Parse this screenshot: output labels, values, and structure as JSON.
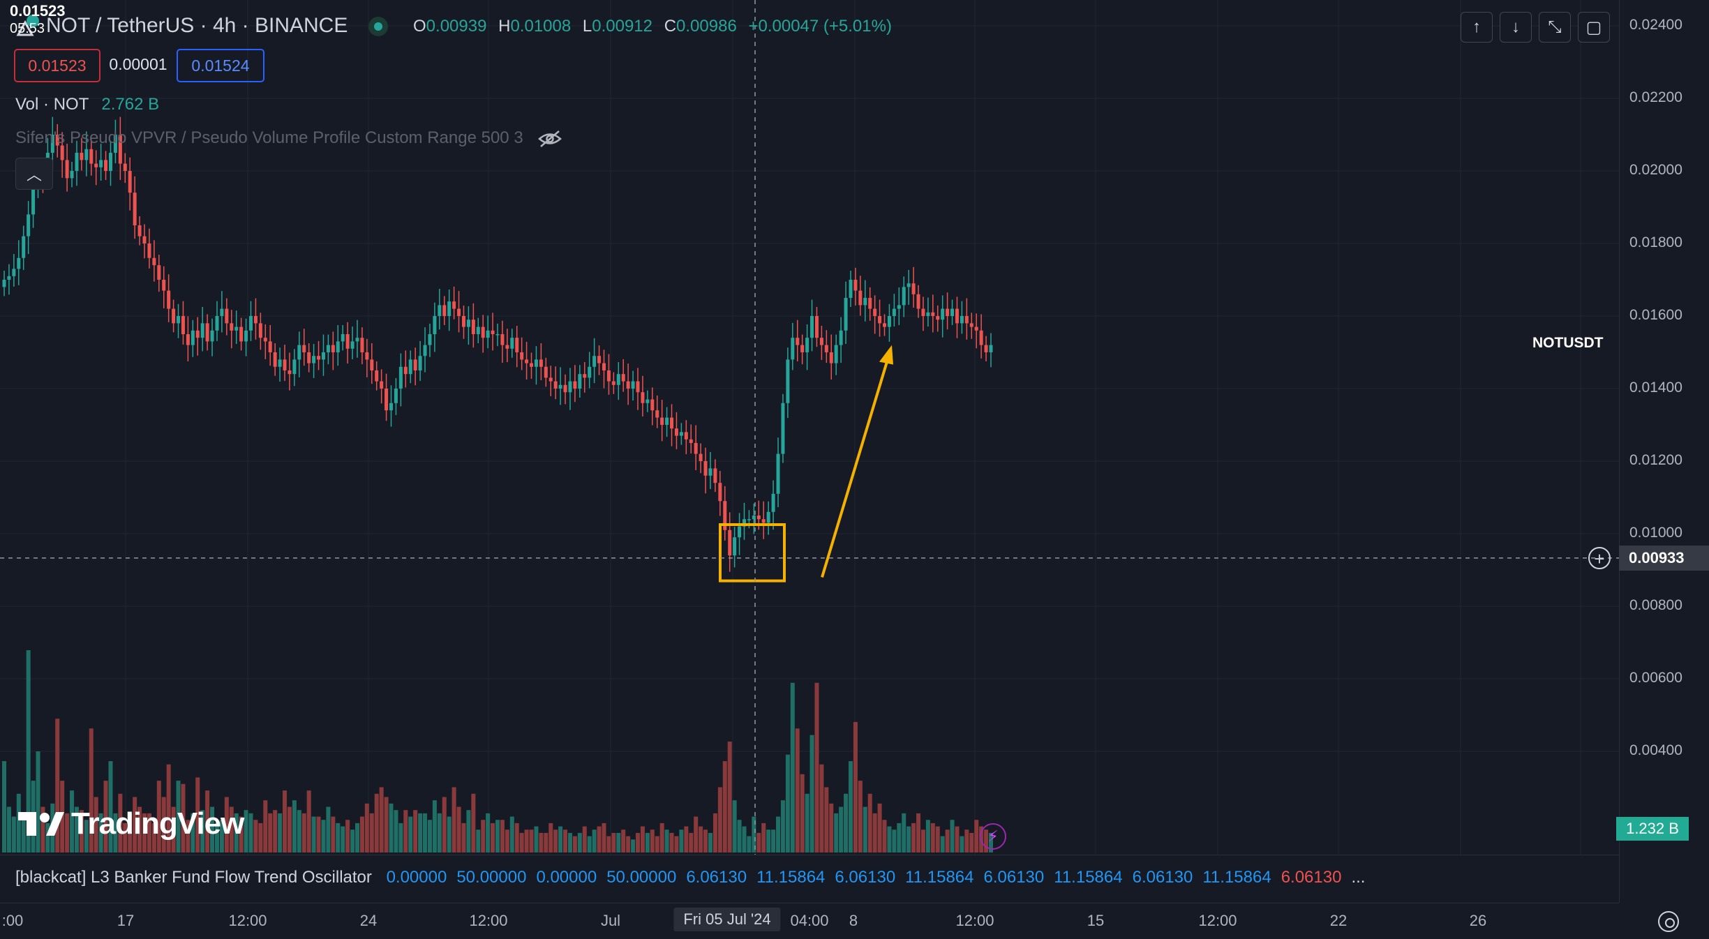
{
  "header": {
    "symbol_title": "NOT / TetherUS · 4h · BINANCE",
    "ohlc": [
      {
        "k": "O",
        "v": "0.00939"
      },
      {
        "k": "H",
        "v": "0.01008"
      },
      {
        "k": "L",
        "v": "0.00912"
      },
      {
        "k": "C",
        "v": "0.00986"
      }
    ],
    "change": "+0.00047 (+5.01%)",
    "bid": "0.01523",
    "spread": "0.00001",
    "ask": "0.01524",
    "volume_label": "Vol · NOT",
    "volume_value": "2.762 B",
    "vpvr_label": "Sifen's Pseudo VPVR / Pseudo Volume Profile Custom Range 500 3"
  },
  "toolbar": {
    "icons": [
      "arrow-up-icon",
      "arrow-down-icon",
      "collapse-icon",
      "fullscreen-icon"
    ],
    "glyphs": [
      "↑",
      "↓",
      "⤡",
      "▢"
    ]
  },
  "price_axis": {
    "labels": [
      "0.02400",
      "0.02200",
      "0.02000",
      "0.01800",
      "0.01600",
      "0.01400",
      "0.01200",
      "0.01000",
      "0.00800",
      "0.00600",
      "0.00400"
    ],
    "current_symbol": "NOTUSDT",
    "current_price": "0.01523",
    "countdown": "05:53",
    "crosshair_price": "0.00933",
    "volume_tag": "1.232 B"
  },
  "time_axis": {
    "labels": [
      ":00",
      "17",
      "12:00",
      "24",
      "12:00",
      "Jul",
      "Fri 05 Jul '24",
      "04:00",
      "8",
      "12:00",
      "15",
      "12:00",
      "22",
      "26"
    ]
  },
  "oscillator": {
    "name": "[blackcat] L3 Banker Fund Flow Trend Oscillator",
    "values": [
      {
        "v": "0.00000",
        "c": "#2196f3"
      },
      {
        "v": "50.00000",
        "c": "#2196f3"
      },
      {
        "v": "0.00000",
        "c": "#2196f3"
      },
      {
        "v": "50.00000",
        "c": "#2196f3"
      },
      {
        "v": "6.06130",
        "c": "#2196f3"
      },
      {
        "v": "11.15864",
        "c": "#2196f3"
      },
      {
        "v": "6.06130",
        "c": "#2196f3"
      },
      {
        "v": "11.15864",
        "c": "#2196f3"
      },
      {
        "v": "6.06130",
        "c": "#2196f3"
      },
      {
        "v": "11.15864",
        "c": "#2196f3"
      },
      {
        "v": "6.06130",
        "c": "#2196f3"
      },
      {
        "v": "11.15864",
        "c": "#2196f3"
      },
      {
        "v": "6.06130",
        "c": "#ef5350"
      },
      {
        "v": "...",
        "c": "#d1d4dc"
      }
    ]
  },
  "branding": {
    "logo_text": "TradingView"
  },
  "colors": {
    "up": "#26a69a",
    "down": "#ef5350",
    "highlight": "#f5b100",
    "grid": "#232632"
  },
  "chart_data": {
    "type": "candlestick",
    "timeframe": "4h",
    "ylim": [
      0.008,
      0.024
    ],
    "closes": [
      0.017,
      0.0171,
      0.0173,
      0.0176,
      0.0182,
      0.0188,
      0.0195,
      0.02,
      0.0198,
      0.0205,
      0.021,
      0.0207,
      0.0203,
      0.0198,
      0.02,
      0.0205,
      0.0203,
      0.0206,
      0.0202,
      0.0201,
      0.0203,
      0.02,
      0.0205,
      0.021,
      0.0202,
      0.02,
      0.0194,
      0.0185,
      0.0182,
      0.018,
      0.0176,
      0.0174,
      0.017,
      0.0167,
      0.0162,
      0.0158,
      0.016,
      0.0155,
      0.0152,
      0.0156,
      0.0154,
      0.0158,
      0.0153,
      0.0156,
      0.016,
      0.0162,
      0.0158,
      0.0156,
      0.0157,
      0.0153,
      0.0156,
      0.016,
      0.0158,
      0.0154,
      0.0153,
      0.015,
      0.0146,
      0.0148,
      0.0145,
      0.0144,
      0.0148,
      0.0152,
      0.015,
      0.0147,
      0.0149,
      0.0148,
      0.015,
      0.0152,
      0.015,
      0.0153,
      0.0155,
      0.0151,
      0.0153,
      0.0154,
      0.015,
      0.0148,
      0.0145,
      0.0142,
      0.014,
      0.0134,
      0.0136,
      0.014,
      0.0146,
      0.0144,
      0.0148,
      0.0145,
      0.0149,
      0.0152,
      0.0155,
      0.016,
      0.0163,
      0.016,
      0.0164,
      0.0162,
      0.016,
      0.0157,
      0.0159,
      0.0155,
      0.0157,
      0.0154,
      0.0156,
      0.0155,
      0.0155,
      0.0152,
      0.0151,
      0.0154,
      0.015,
      0.0148,
      0.0147,
      0.0146,
      0.0148,
      0.0146,
      0.0143,
      0.0142,
      0.014,
      0.0141,
      0.0139,
      0.0142,
      0.014,
      0.0144,
      0.0143,
      0.0146,
      0.0149,
      0.0147,
      0.0145,
      0.0142,
      0.0141,
      0.0144,
      0.0142,
      0.014,
      0.0142,
      0.0139,
      0.0136,
      0.0137,
      0.0134,
      0.0132,
      0.013,
      0.0132,
      0.0129,
      0.0127,
      0.0128,
      0.0126,
      0.0125,
      0.0122,
      0.012,
      0.0116,
      0.0118,
      0.0114,
      0.0109,
      0.0101,
      0.0094,
      0.0099,
      0.0102,
      0.0104,
      0.0104,
      0.0105,
      0.0104,
      0.0103,
      0.0106,
      0.0111,
      0.0122,
      0.0136,
      0.0148,
      0.0154,
      0.0152,
      0.015,
      0.0154,
      0.016,
      0.0154,
      0.0152,
      0.015,
      0.0147,
      0.0152,
      0.0156,
      0.0165,
      0.017,
      0.0167,
      0.0163,
      0.0165,
      0.0162,
      0.016,
      0.0158,
      0.0157,
      0.016,
      0.0162,
      0.0163,
      0.0168,
      0.0169,
      0.0166,
      0.0162,
      0.016,
      0.0161,
      0.016,
      0.0159,
      0.0162,
      0.016,
      0.0162,
      0.0158,
      0.016,
      0.0158,
      0.0157,
      0.0156,
      0.0152,
      0.015,
      0.0152
    ],
    "volumes": [
      0.28,
      0.14,
      0.11,
      0.18,
      0.1,
      0.62,
      0.22,
      0.31,
      0.14,
      0.09,
      0.15,
      0.41,
      0.22,
      0.12,
      0.19,
      0.14,
      0.13,
      0.1,
      0.38,
      0.17,
      0.12,
      0.22,
      0.28,
      0.12,
      0.18,
      0.09,
      0.12,
      0.17,
      0.14,
      0.12,
      0.12,
      0.09,
      0.22,
      0.17,
      0.27,
      0.14,
      0.22,
      0.21,
      0.1,
      0.12,
      0.23,
      0.13,
      0.19,
      0.14,
      0.09,
      0.1,
      0.17,
      0.14,
      0.12,
      0.11,
      0.13,
      0.12,
      0.1,
      0.09,
      0.16,
      0.12,
      0.13,
      0.12,
      0.19,
      0.14,
      0.16,
      0.13,
      0.12,
      0.19,
      0.11,
      0.11,
      0.1,
      0.14,
      0.11,
      0.09,
      0.08,
      0.1,
      0.07,
      0.09,
      0.11,
      0.15,
      0.12,
      0.18,
      0.2,
      0.17,
      0.15,
      0.13,
      0.09,
      0.13,
      0.11,
      0.13,
      0.12,
      0.12,
      0.1,
      0.16,
      0.12,
      0.17,
      0.11,
      0.2,
      0.14,
      0.09,
      0.13,
      0.18,
      0.07,
      0.1,
      0.12,
      0.09,
      0.1,
      0.1,
      0.07,
      0.11,
      0.09,
      0.06,
      0.07,
      0.07,
      0.08,
      0.06,
      0.06,
      0.09,
      0.07,
      0.08,
      0.07,
      0.06,
      0.05,
      0.06,
      0.08,
      0.05,
      0.07,
      0.08,
      0.09,
      0.05,
      0.06,
      0.06,
      0.07,
      0.05,
      0.04,
      0.06,
      0.08,
      0.06,
      0.07,
      0.05,
      0.09,
      0.07,
      0.06,
      0.05,
      0.07,
      0.08,
      0.06,
      0.11,
      0.08,
      0.07,
      0.06,
      0.12,
      0.2,
      0.28,
      0.34,
      0.16,
      0.1,
      0.08,
      0.05,
      0.11,
      0.06,
      0.09,
      0.07,
      0.07,
      0.11,
      0.16,
      0.3,
      0.52,
      0.38,
      0.24,
      0.18,
      0.36,
      0.52,
      0.27,
      0.2,
      0.15,
      0.12,
      0.14,
      0.18,
      0.28,
      0.4,
      0.22,
      0.14,
      0.18,
      0.12,
      0.15,
      0.1,
      0.08,
      0.07,
      0.09,
      0.12,
      0.08,
      0.09,
      0.12,
      0.07,
      0.1,
      0.09,
      0.08,
      0.05,
      0.07,
      0.1,
      0.08,
      0.05,
      0.07,
      0.06,
      0.1,
      0.08,
      0.07,
      0.06,
      0.05,
      0.06
    ],
    "annotations": {
      "highlight_box": {
        "price_low": 0.0087,
        "price_high": 0.01025
      },
      "arrow": {
        "from_price": 0.0088,
        "to_price": 0.0152
      },
      "crosshair_price": 0.00933
    }
  }
}
